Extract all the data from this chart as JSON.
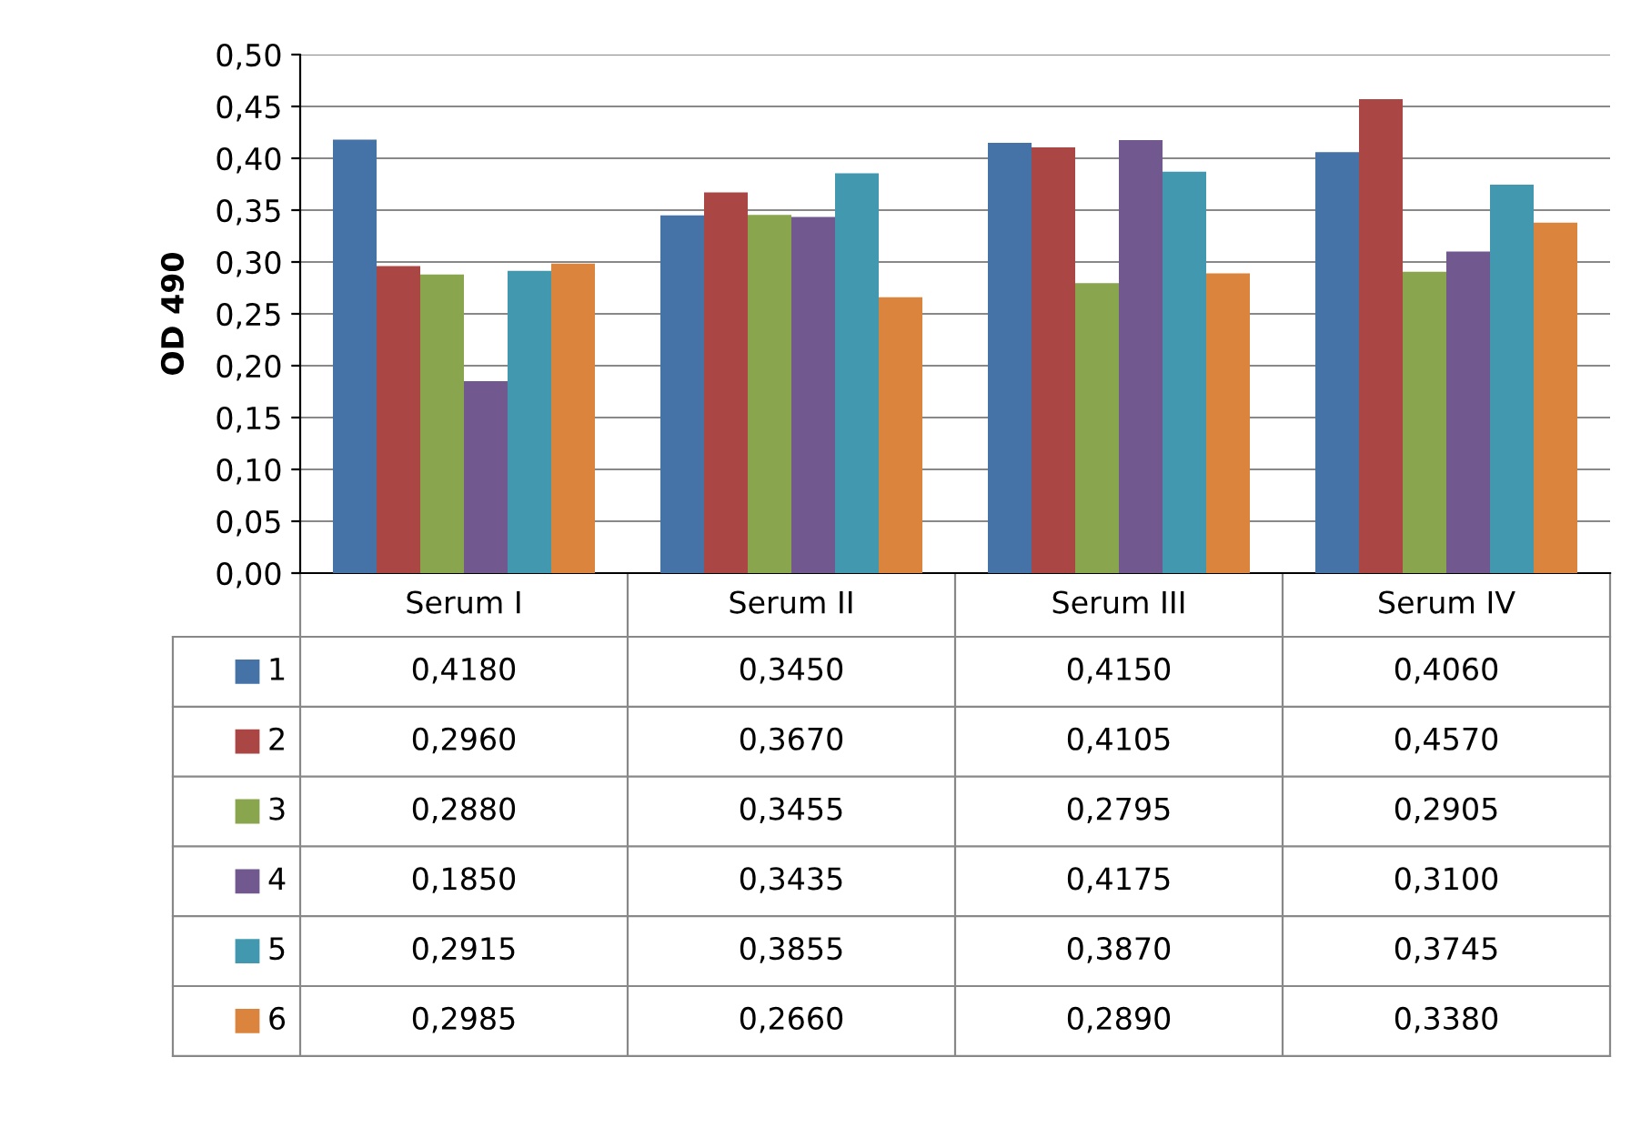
{
  "chart_data": {
    "type": "bar",
    "ylabel": "OD 490",
    "categories": [
      "Serum I",
      "Serum II",
      "Serum III",
      "Serum IV"
    ],
    "series": [
      {
        "name": "1",
        "color": "#4572a7",
        "values": [
          0.418,
          0.345,
          0.415,
          0.406
        ],
        "value_labels": [
          "0,4180",
          "0,3450",
          "0,4150",
          "0,4060"
        ]
      },
      {
        "name": "2",
        "color": "#aa4643",
        "values": [
          0.296,
          0.367,
          0.4105,
          0.457
        ],
        "value_labels": [
          "0,2960",
          "0,3670",
          "0,4105",
          "0,4570"
        ]
      },
      {
        "name": "3",
        "color": "#89a54e",
        "values": [
          0.288,
          0.3455,
          0.2795,
          0.2905
        ],
        "value_labels": [
          "0,2880",
          "0,3455",
          "0,2795",
          "0,2905"
        ]
      },
      {
        "name": "4",
        "color": "#71588f",
        "values": [
          0.185,
          0.3435,
          0.4175,
          0.31
        ],
        "value_labels": [
          "0,1850",
          "0,3435",
          "0,4175",
          "0,3100"
        ]
      },
      {
        "name": "5",
        "color": "#4198af",
        "values": [
          0.2915,
          0.3855,
          0.387,
          0.3745
        ],
        "value_labels": [
          "0,2915",
          "0,3855",
          "0,3870",
          "0,3745"
        ]
      },
      {
        "name": "6",
        "color": "#db843d",
        "values": [
          0.2985,
          0.266,
          0.289,
          0.338
        ],
        "value_labels": [
          "0,2985",
          "0,2660",
          "0,2890",
          "0,3380"
        ]
      }
    ],
    "ylim": [
      0,
      0.5
    ],
    "yticks": [
      {
        "value": 0,
        "label": "0,00"
      },
      {
        "value": 0.05,
        "label": "0,05"
      },
      {
        "value": 0.1,
        "label": "0,10"
      },
      {
        "value": 0.15,
        "label": "0,15"
      },
      {
        "value": 0.2,
        "label": "0,20"
      },
      {
        "value": 0.25,
        "label": "0,25"
      },
      {
        "value": 0.3,
        "label": "0,30"
      },
      {
        "value": 0.35,
        "label": "0,35"
      },
      {
        "value": 0.4,
        "label": "0,40"
      },
      {
        "value": 0.45,
        "label": "0,45"
      },
      {
        "value": 0.5,
        "label": "0,50"
      }
    ],
    "grid": "y",
    "legend": "bottom"
  }
}
